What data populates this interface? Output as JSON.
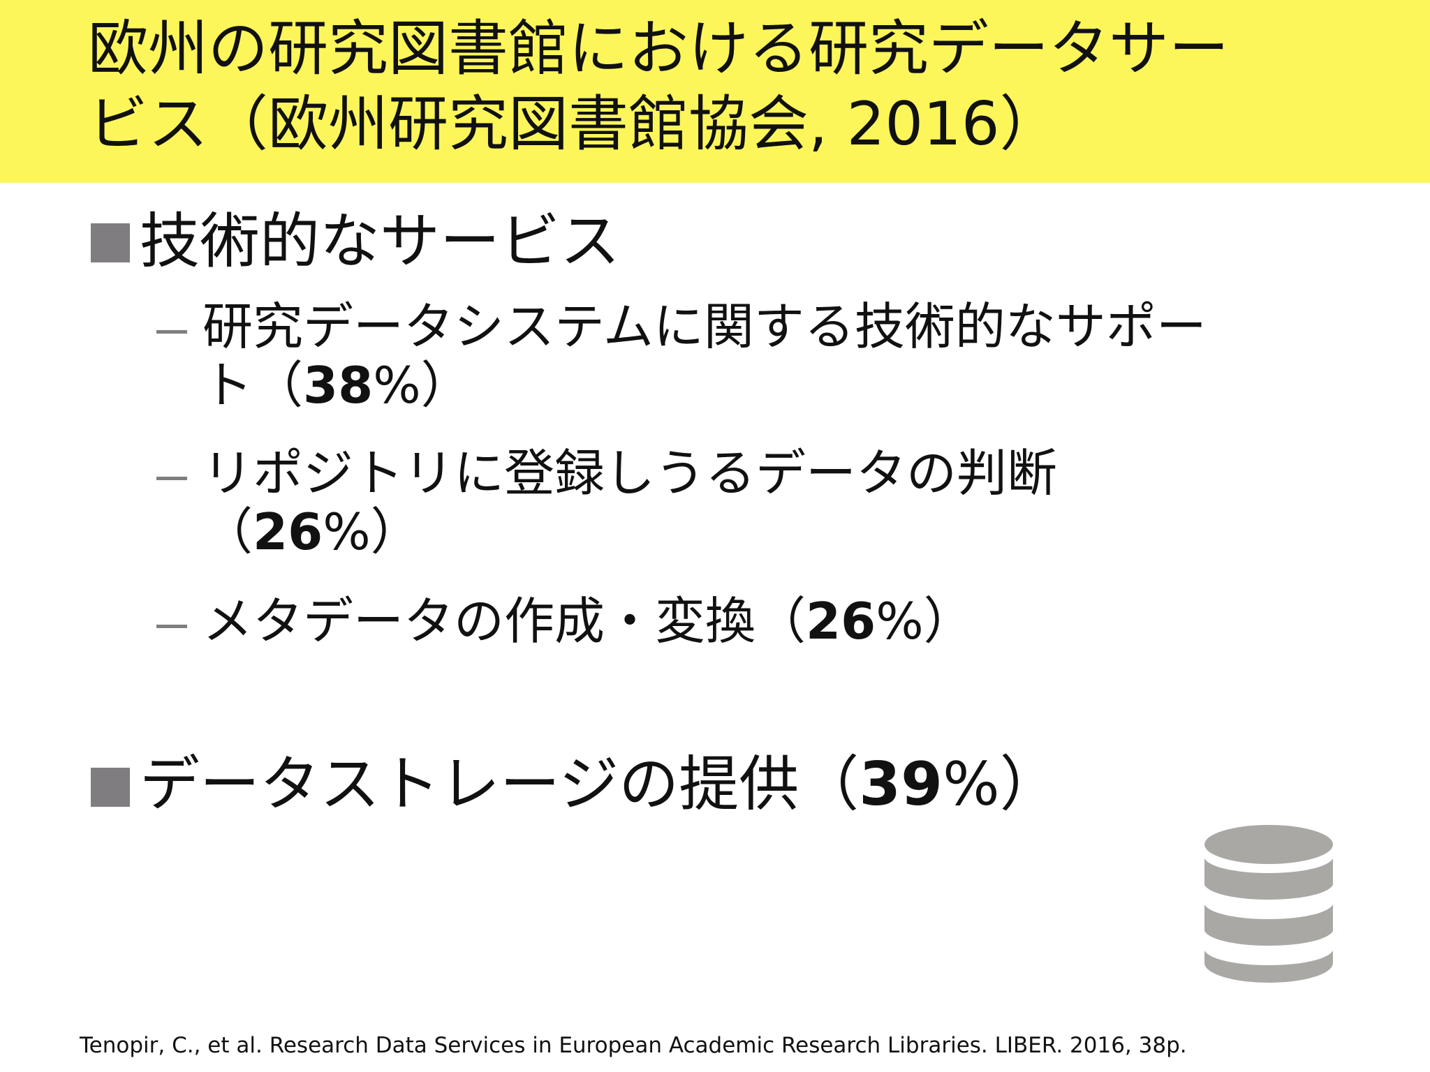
{
  "title": {
    "line1": "欧州の研究図書館における研究データサー",
    "line2": "ビス（欧州研究図書館協会, 2016）"
  },
  "sections": [
    {
      "heading": "技術的なサービス",
      "items": [
        {
          "line1": "研究データシステムに関する技術的なサポー",
          "line2_prefix": "ト（",
          "percent": "38",
          "line2_suffix": "%）"
        },
        {
          "line1": "リポジトリに登録しうるデータの判断",
          "line2_prefix": "（",
          "percent": "26",
          "line2_suffix": "%）"
        },
        {
          "line1_prefix": "メタデータの作成・変換（",
          "percent": "26",
          "line1_suffix": "%）"
        }
      ]
    },
    {
      "heading_prefix": "データストレージの提供（",
      "percent": "39",
      "heading_suffix": "%）"
    }
  ],
  "icon": "database-icon",
  "colors": {
    "title_background": "#fcf65b",
    "bullet": "#7f7d7f",
    "icon": "#a9a8a5"
  },
  "citation": "Tenopir, C., et al. Research Data Services in European Academic Research Libraries. LIBER. 2016, 38p."
}
